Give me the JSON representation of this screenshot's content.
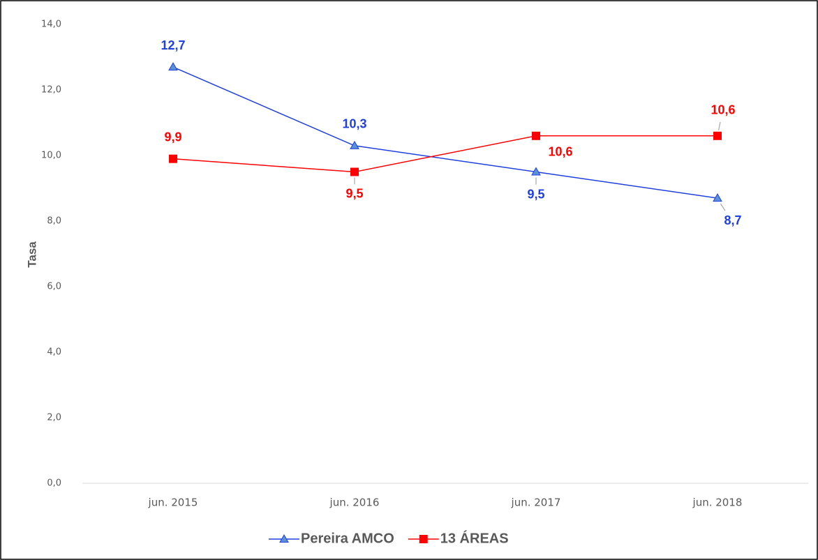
{
  "chart_data": {
    "type": "line",
    "y_label": "Tasa",
    "categories": [
      "jun. 2015",
      "jun. 2016",
      "jun. 2017",
      "jun. 2018"
    ],
    "series": [
      {
        "name": "Pereira AMCO",
        "color": "#1f3fe0",
        "marker_color": "#5b8fd6",
        "marker": "triangle",
        "values": [
          12.7,
          10.3,
          9.5,
          8.7
        ],
        "value_labels": [
          "12,7",
          "10,3",
          "9,5",
          "8,7"
        ]
      },
      {
        "name": "13 ÁREAS",
        "color": "#ff0000",
        "marker_color": "#ff0000",
        "marker": "square",
        "values": [
          9.9,
          9.5,
          10.6,
          10.6
        ],
        "value_labels": [
          "9,9",
          "9,5",
          "10,6",
          "10,6"
        ]
      }
    ],
    "ylim": [
      0,
      14
    ],
    "yticks": [
      {
        "value": 0,
        "label": "0,0"
      },
      {
        "value": 2,
        "label": "2,0"
      },
      {
        "value": 4,
        "label": "4,0"
      },
      {
        "value": 6,
        "label": "6,0"
      },
      {
        "value": 8,
        "label": "8,0"
      },
      {
        "value": 10,
        "label": "10,0"
      },
      {
        "value": 12,
        "label": "12,0"
      },
      {
        "value": 14,
        "label": "14,0"
      }
    ],
    "grid": false
  }
}
